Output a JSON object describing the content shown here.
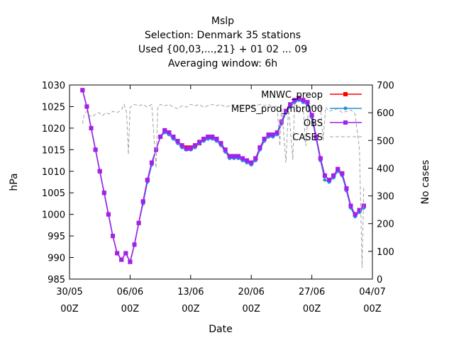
{
  "chart_data": {
    "type": "line",
    "title_lines": [
      "Mslp",
      "Selection: Denmark     35 stations",
      "Used {00,03,...,21} + 01 02 ... 09",
      "Averaging window:  6h"
    ],
    "xlabel": "Date",
    "ylabel": "hPa",
    "y2label": "No cases",
    "xlim": [
      0,
      35
    ],
    "ylim": [
      985,
      1030
    ],
    "y2lim": [
      0,
      700
    ],
    "x_ticks": [
      {
        "x": 0,
        "line1": "30/05",
        "line2": "00Z"
      },
      {
        "x": 7,
        "line1": "06/06",
        "line2": "00Z"
      },
      {
        "x": 14,
        "line1": "13/06",
        "line2": "00Z"
      },
      {
        "x": 21,
        "line1": "20/06",
        "line2": "00Z"
      },
      {
        "x": 28,
        "line1": "27/06",
        "line2": "00Z"
      },
      {
        "x": 35,
        "line1": "04/07",
        "line2": "00Z"
      }
    ],
    "y_ticks": [
      "985",
      "990",
      "995",
      "1000",
      "1005",
      "1010",
      "1015",
      "1020",
      "1025",
      "1030"
    ],
    "y2_ticks": [
      "0",
      "100",
      "200",
      "300",
      "400",
      "500",
      "600",
      "700"
    ],
    "legend_position": "top-right",
    "grid": false,
    "series": [
      {
        "name": "MNWC_preop",
        "color": "#ff0000",
        "marker": "square",
        "axis": "left",
        "points": [
          [
            1.5,
            1028.8
          ],
          [
            2,
            1025
          ],
          [
            2.5,
            1020
          ],
          [
            3,
            1015
          ],
          [
            3.5,
            1010
          ],
          [
            4,
            1005
          ],
          [
            4.5,
            1000
          ],
          [
            5,
            995
          ],
          [
            5.5,
            991
          ],
          [
            6,
            989.5
          ],
          [
            6.5,
            991
          ],
          [
            7,
            989
          ],
          [
            7.5,
            993
          ],
          [
            8,
            998
          ],
          [
            8.5,
            1003
          ],
          [
            9,
            1008
          ],
          [
            9.5,
            1012
          ],
          [
            10,
            1015
          ],
          [
            10.5,
            1018
          ],
          [
            11,
            1019.5
          ],
          [
            11.5,
            1019
          ],
          [
            12,
            1018
          ],
          [
            12.5,
            1017
          ],
          [
            13,
            1016
          ],
          [
            13.5,
            1015.5
          ],
          [
            14,
            1015.5
          ],
          [
            14.5,
            1016
          ],
          [
            15,
            1016.5
          ],
          [
            15.5,
            1017.5
          ],
          [
            16,
            1018
          ],
          [
            16.5,
            1018
          ],
          [
            17,
            1017.5
          ],
          [
            17.5,
            1016.5
          ],
          [
            18,
            1015
          ],
          [
            18.5,
            1013.5
          ],
          [
            19,
            1013.5
          ],
          [
            19.5,
            1013.5
          ],
          [
            20,
            1013
          ],
          [
            20.5,
            1012.5
          ],
          [
            21,
            1012
          ],
          [
            21.5,
            1013
          ],
          [
            22,
            1015.5
          ],
          [
            22.5,
            1017.5
          ],
          [
            23,
            1018.5
          ],
          [
            23.5,
            1018.5
          ],
          [
            24,
            1019
          ],
          [
            24.5,
            1021.5
          ],
          [
            25,
            1024
          ],
          [
            25.5,
            1025.5
          ],
          [
            26,
            1026.5
          ],
          [
            26.5,
            1027
          ],
          [
            27,
            1026.5
          ],
          [
            27.5,
            1026
          ],
          [
            28,
            1023
          ],
          [
            28.5,
            1018
          ],
          [
            29,
            1013
          ],
          [
            29.5,
            1009
          ],
          [
            30,
            1008
          ],
          [
            30.5,
            1009
          ],
          [
            31,
            1010.5
          ],
          [
            31.5,
            1009.5
          ],
          [
            32,
            1006
          ],
          [
            32.5,
            1002
          ],
          [
            33,
            1000
          ],
          [
            33.5,
            1001
          ],
          [
            34,
            1002
          ]
        ]
      },
      {
        "name": "MEPS_prod_mbr000",
        "color": "#1f8fdf",
        "marker": "circle",
        "axis": "left",
        "points": [
          [
            1.5,
            1028.8
          ],
          [
            2,
            1025
          ],
          [
            2.5,
            1020
          ],
          [
            3,
            1015
          ],
          [
            3.5,
            1010
          ],
          [
            4,
            1005
          ],
          [
            4.5,
            1000
          ],
          [
            5,
            995
          ],
          [
            5.5,
            991
          ],
          [
            6,
            989.5
          ],
          [
            6.5,
            991
          ],
          [
            7,
            989
          ],
          [
            7.5,
            993
          ],
          [
            8,
            998
          ],
          [
            8.5,
            1002.5
          ],
          [
            9,
            1007.5
          ],
          [
            9.5,
            1011.5
          ],
          [
            10,
            1015
          ],
          [
            10.5,
            1018
          ],
          [
            11,
            1019
          ],
          [
            11.5,
            1018.5
          ],
          [
            12,
            1017.5
          ],
          [
            12.5,
            1016.5
          ],
          [
            13,
            1015.5
          ],
          [
            13.5,
            1015
          ],
          [
            14,
            1015
          ],
          [
            14.5,
            1015.5
          ],
          [
            15,
            1016.5
          ],
          [
            15.5,
            1017
          ],
          [
            16,
            1017.5
          ],
          [
            16.5,
            1017.5
          ],
          [
            17,
            1017
          ],
          [
            17.5,
            1016
          ],
          [
            18,
            1014.5
          ],
          [
            18.5,
            1013
          ],
          [
            19,
            1013
          ],
          [
            19.5,
            1013
          ],
          [
            20,
            1012.5
          ],
          [
            20.5,
            1012
          ],
          [
            21,
            1011.5
          ],
          [
            21.5,
            1012.5
          ],
          [
            22,
            1015
          ],
          [
            22.5,
            1017
          ],
          [
            23,
            1018
          ],
          [
            23.5,
            1018
          ],
          [
            24,
            1018.5
          ],
          [
            24.5,
            1021
          ],
          [
            25,
            1023.5
          ],
          [
            25.5,
            1025
          ],
          [
            26,
            1026
          ],
          [
            26.5,
            1026.5
          ],
          [
            27,
            1026
          ],
          [
            27.5,
            1025.5
          ],
          [
            28,
            1022.5
          ],
          [
            28.5,
            1017.5
          ],
          [
            29,
            1012.5
          ],
          [
            29.5,
            1008
          ],
          [
            30,
            1007.5
          ],
          [
            30.5,
            1008.5
          ],
          [
            31,
            1010
          ],
          [
            31.5,
            1009
          ],
          [
            32,
            1005.5
          ],
          [
            32.5,
            1001.5
          ],
          [
            33,
            999.5
          ],
          [
            33.5,
            1000.5
          ],
          [
            34,
            1001.5
          ]
        ]
      },
      {
        "name": "OBS",
        "color": "#a020f0",
        "marker": "square",
        "axis": "left",
        "points": [
          [
            1.5,
            1028.8
          ],
          [
            2,
            1025
          ],
          [
            2.5,
            1020
          ],
          [
            3,
            1015
          ],
          [
            3.5,
            1010
          ],
          [
            4,
            1005
          ],
          [
            4.5,
            1000
          ],
          [
            5,
            995
          ],
          [
            5.5,
            991
          ],
          [
            6,
            989.5
          ],
          [
            6.5,
            991
          ],
          [
            7,
            989
          ],
          [
            7.5,
            993
          ],
          [
            8,
            998
          ],
          [
            8.5,
            1003
          ],
          [
            9,
            1008
          ],
          [
            9.5,
            1012
          ],
          [
            10,
            1015
          ],
          [
            10.5,
            1018
          ],
          [
            11,
            1019.5
          ],
          [
            11.5,
            1019
          ],
          [
            12,
            1018
          ],
          [
            12.5,
            1017
          ],
          [
            13,
            1016
          ],
          [
            13.5,
            1015.2
          ],
          [
            14,
            1015.3
          ],
          [
            14.5,
            1016
          ],
          [
            15,
            1016.8
          ],
          [
            15.5,
            1017.5
          ],
          [
            16,
            1018
          ],
          [
            16.5,
            1018
          ],
          [
            17,
            1017.5
          ],
          [
            17.5,
            1016.5
          ],
          [
            18,
            1015
          ],
          [
            18.5,
            1013.5
          ],
          [
            19,
            1013.5
          ],
          [
            19.5,
            1013.5
          ],
          [
            20,
            1013
          ],
          [
            20.5,
            1012.5
          ],
          [
            21,
            1012
          ],
          [
            21.5,
            1013
          ],
          [
            22,
            1015.5
          ],
          [
            22.5,
            1017.5
          ],
          [
            23,
            1018.5
          ],
          [
            23.5,
            1018.5
          ],
          [
            24,
            1019
          ],
          [
            24.5,
            1021.5
          ],
          [
            25,
            1024
          ],
          [
            25.5,
            1025.5
          ],
          [
            26,
            1026.5
          ],
          [
            26.5,
            1027
          ],
          [
            27,
            1026.5
          ],
          [
            27.5,
            1026
          ],
          [
            28,
            1023
          ],
          [
            28.5,
            1018
          ],
          [
            29,
            1013
          ],
          [
            29.5,
            1009
          ],
          [
            30,
            1008
          ],
          [
            30.5,
            1009
          ],
          [
            31,
            1010.5
          ],
          [
            31.5,
            1009.5
          ],
          [
            32,
            1006
          ],
          [
            32.5,
            1002
          ],
          [
            33,
            1000
          ],
          [
            33.5,
            1001
          ],
          [
            34,
            1002
          ]
        ]
      },
      {
        "name": "CASES",
        "color": "#a0a0a0",
        "marker": "none",
        "dashed": true,
        "axis": "right",
        "points": [
          [
            1.5,
            560
          ],
          [
            1.7,
            595
          ],
          [
            2,
            605
          ],
          [
            2.3,
            590
          ],
          [
            2.6,
            585
          ],
          [
            3,
            595
          ],
          [
            3.4,
            600
          ],
          [
            3.8,
            590
          ],
          [
            4.2,
            600
          ],
          [
            4.6,
            595
          ],
          [
            5,
            605
          ],
          [
            5.5,
            600
          ],
          [
            6,
            610
          ],
          [
            6.3,
            630
          ],
          [
            6.6,
            600
          ],
          [
            6.8,
            450
          ],
          [
            7,
            620
          ],
          [
            7.5,
            630
          ],
          [
            8,
            625
          ],
          [
            8.5,
            630
          ],
          [
            9,
            620
          ],
          [
            9.5,
            630
          ],
          [
            10,
            400
          ],
          [
            10.2,
            620
          ],
          [
            10.5,
            630
          ],
          [
            11,
            625
          ],
          [
            11.5,
            630
          ],
          [
            12,
            620
          ],
          [
            12.5,
            615
          ],
          [
            13,
            625
          ],
          [
            13.5,
            620
          ],
          [
            14,
            630
          ],
          [
            14.5,
            625
          ],
          [
            15,
            630
          ],
          [
            15.5,
            620
          ],
          [
            16,
            625
          ],
          [
            16.5,
            630
          ],
          [
            17,
            625
          ],
          [
            17.5,
            630
          ],
          [
            18,
            620
          ],
          [
            18.5,
            625
          ],
          [
            19,
            630
          ],
          [
            19.5,
            620
          ],
          [
            20,
            625
          ],
          [
            20.5,
            630
          ],
          [
            21,
            620
          ],
          [
            21.5,
            625
          ],
          [
            22,
            630
          ],
          [
            22.5,
            625
          ],
          [
            23,
            630
          ],
          [
            23.5,
            620
          ],
          [
            24,
            625
          ],
          [
            24.3,
            480
          ],
          [
            24.5,
            630
          ],
          [
            25,
            420
          ],
          [
            25.3,
            620
          ],
          [
            25.8,
            430
          ],
          [
            26,
            630
          ],
          [
            26.5,
            600
          ],
          [
            27,
            620
          ],
          [
            27.3,
            480
          ],
          [
            27.6,
            610
          ],
          [
            28,
            625
          ],
          [
            28.5,
            615
          ],
          [
            29,
            620
          ],
          [
            29.3,
            500
          ],
          [
            29.6,
            620
          ],
          [
            30,
            605
          ],
          [
            30.5,
            610
          ],
          [
            31,
            615
          ],
          [
            31.5,
            600
          ],
          [
            32,
            605
          ],
          [
            32.5,
            610
          ],
          [
            33,
            595
          ],
          [
            33.5,
            470
          ],
          [
            33.8,
            40
          ],
          [
            34,
            330
          ]
        ]
      }
    ]
  }
}
